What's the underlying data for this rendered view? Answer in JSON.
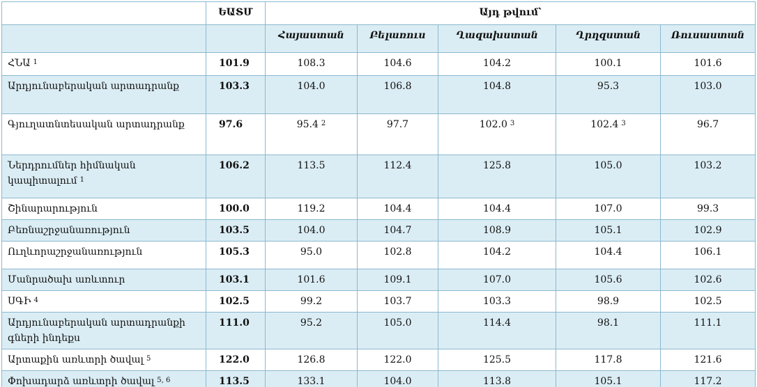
{
  "table": {
    "header": {
      "corner": "",
      "union": "ԵԱՏՄ",
      "group": "Այդ թվում՝",
      "countries": [
        "Հայաստան",
        "Բելառուս",
        "Ղազախստան",
        "Ղրղզստան",
        "Ռուսաստան"
      ]
    },
    "rows": [
      {
        "label": "ՀՆԱ",
        "note": "1",
        "cells": [
          "101.9",
          "108.3",
          "104.6",
          "104.2",
          "100.1",
          "101.6"
        ]
      },
      {
        "label": "Արդյունաբերական արտադրանք",
        "cells": [
          "103.3",
          "104.0",
          "106.8",
          "104.8",
          "95.3",
          "103.0"
        ]
      },
      {
        "label": "Գյուղատնտեսական արտադրանք",
        "cells": [
          "97.6",
          {
            "text": "95.4",
            "note": "2"
          },
          "97.7",
          {
            "text": "102.0",
            "note": "3"
          },
          {
            "text": "102.4",
            "note": "3"
          },
          "96.7"
        ]
      },
      {
        "label": "Ներդրումներ հիմնական կապիտալում",
        "note": "1",
        "cells": [
          "106.2",
          "113.5",
          "112.4",
          "125.8",
          "105.0",
          "103.2"
        ]
      },
      {
        "label": "Շինարարություն",
        "cells": [
          "100.0",
          "119.2",
          "104.4",
          "104.4",
          "107.0",
          "99.3"
        ]
      },
      {
        "label": "Բեռնաշրջանառություն",
        "cells": [
          "103.5",
          "104.0",
          "104.7",
          "108.9",
          "105.1",
          "102.9"
        ]
      },
      {
        "label": "Ուղևորաշրջանառություն",
        "cells": [
          "105.3",
          "95.0",
          "102.8",
          "104.2",
          "104.4",
          "106.1"
        ]
      },
      {
        "label": "Մանրածախ առևտուր",
        "cells": [
          "103.1",
          "101.6",
          "109.1",
          "107.0",
          "105.6",
          "102.6"
        ]
      },
      {
        "label": "ՍԳԻ",
        "note": "4",
        "cells": [
          "102.5",
          "99.2",
          "103.7",
          "103.3",
          "98.9",
          "102.5"
        ]
      },
      {
        "label": "Արդյունաբերական արտադրանքի գների ինդեքս",
        "cells": [
          "111.0",
          "95.2",
          "105.0",
          "114.4",
          "98.1",
          "111.1"
        ]
      },
      {
        "label": "Արտաքին առևտրի ծավալ",
        "note": "5",
        "cells": [
          "122.0",
          "126.8",
          "122.0",
          "125.5",
          "117.8",
          "121.6"
        ]
      },
      {
        "label": "Փոխադարձ առևտրի ծավալ",
        "note": "5, 6",
        "cells": [
          "113.5",
          "133.1",
          "104.0",
          "113.8",
          "105.1",
          "117.2"
        ]
      }
    ]
  }
}
